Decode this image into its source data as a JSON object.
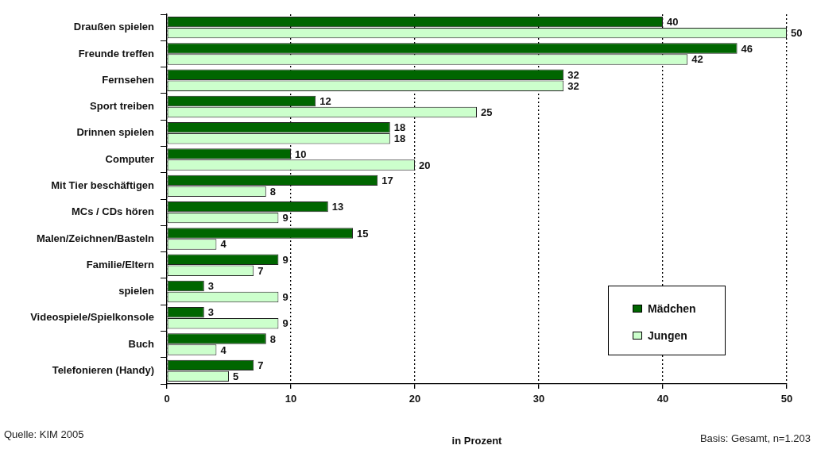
{
  "chart_data": {
    "type": "bar",
    "orientation": "horizontal",
    "categories": [
      "Draußen spielen",
      "Freunde treffen",
      "Fernsehen",
      "Sport treiben",
      "Drinnen spielen",
      "Computer",
      "Mit Tier beschäftigen",
      "MCs / CDs hören",
      "Malen/Zeichnen/Basteln",
      "Familie/Eltern",
      "spielen",
      "Videospiele/Spielkonsole",
      "Buch",
      "Telefonieren (Handy)"
    ],
    "series": [
      {
        "name": "Mädchen",
        "color": "#006600",
        "values": [
          40,
          46,
          32,
          12,
          18,
          10,
          17,
          13,
          15,
          9,
          3,
          3,
          8,
          7
        ]
      },
      {
        "name": "Jungen",
        "color": "#ccffcc",
        "values": [
          50,
          42,
          32,
          25,
          18,
          20,
          8,
          9,
          4,
          7,
          9,
          9,
          4,
          5
        ]
      }
    ],
    "xlabel": "in Prozent",
    "xlim": [
      0,
      50
    ],
    "xticks": [
      0,
      10,
      20,
      30,
      40,
      50
    ],
    "grid": "x",
    "legend": "bottom right",
    "data_labels": true,
    "annotations": [
      "Quelle: KIM 2005",
      "Basis: Gesamt, n=1.203"
    ]
  }
}
